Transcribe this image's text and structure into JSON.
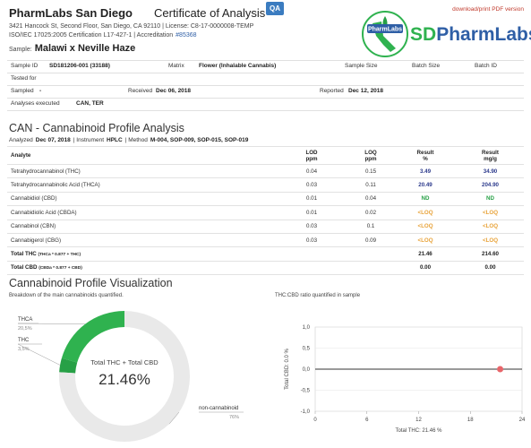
{
  "header": {
    "lab_name": "PharmLabs San Diego",
    "doc_title": "Certificate of Analysis",
    "badge": "QA",
    "download_link": "download/print PDF version",
    "address": "3421 Hancock St, Second Floor, San Diego, CA 92110 | License: C8-17-0000008-TEMP",
    "accreditation": "ISO/IEC 17025:2005 Certification L17-427-1 | Accreditation",
    "accreditation_no": "#85368",
    "sample_label": "Sample:",
    "sample_name": "Malawi x Neville Haze",
    "logo_badge": "PharmLabs",
    "logo_prefix": "SD",
    "logo_text": "PharmLabs"
  },
  "info": {
    "sample_id_label": "Sample ID",
    "sample_id": "SD181206-001 (33188)",
    "matrix_label": "Matrix",
    "matrix": "Flower (Inhalable Cannabis)",
    "sample_size_label": "Sample Size",
    "batch_size_label": "Batch Size",
    "batch_id_label": "Batch ID",
    "tested_for_label": "Tested for",
    "sampled_label": "Sampled",
    "sampled": "-",
    "received_label": "Received",
    "received": "Dec 06, 2018",
    "reported_label": "Reported",
    "reported": "Dec 12, 2018",
    "analyses_label": "Analyses executed",
    "analyses": "CAN, TER"
  },
  "can": {
    "title": "CAN - Cannabinoid Profile Analysis",
    "analyzed_label": "Analyzed",
    "analyzed": "Dec 07, 2018",
    "instrument_label": "| Instrument",
    "instrument": "HPLC",
    "method_label": "| Method",
    "method": "M-004, SOP-009, SOP-015, SOP-019"
  },
  "table": {
    "headers": [
      {
        "top": "Analyte"
      },
      {
        "top": "LOD",
        "bottom": "ppm"
      },
      {
        "top": "LOQ",
        "bottom": "ppm"
      },
      {
        "top": "Result",
        "bottom": "%"
      },
      {
        "top": "Result",
        "bottom": "mg/g"
      }
    ],
    "rows": [
      [
        "Tetrahydrocannabinol (THC)",
        "0.04",
        "0.15",
        "3.49",
        "34.90"
      ],
      [
        "Tetrahydrocannabinolic Acid (THCA)",
        "0.03",
        "0.11",
        "20.49",
        "204.90"
      ],
      [
        "Cannabidiol (CBD)",
        "0.01",
        "0.04",
        "ND",
        "ND"
      ],
      [
        "Cannabidiolic Acid (CBDA)",
        "0.01",
        "0.02",
        "<LOQ",
        "<LOQ"
      ],
      [
        "Cannabinol (CBN)",
        "0.03",
        "0.1",
        "<LOQ",
        "<LOQ"
      ],
      [
        "Cannabigerol (CBG)",
        "0.03",
        "0.09",
        "<LOQ",
        "<LOQ"
      ]
    ],
    "totals": [
      {
        "name": "Total THC",
        "formula": "(THCa * 0.877 + THC)",
        "percent": "21.46",
        "mg_g": "214.60"
      },
      {
        "name": "Total CBD",
        "formula": "(CBDa * 0.877 + CBD)",
        "percent": "0.00",
        "mg_g": "0.00"
      }
    ]
  },
  "viz": {
    "title": "Cannabinoid Profile Visualization",
    "donut_caption": "Breakdown of the main cannabinoids quantified.",
    "scatter_caption": "THC:CBD ratio quantified in sample"
  },
  "donut": {
    "type": "pie",
    "center_title": "Total THC + Total CBD",
    "center_value": "21.46%",
    "segments": [
      {
        "name": "THCA",
        "value": 20.5,
        "label": "20,5%",
        "color": "#2fb24f"
      },
      {
        "name": "THC",
        "value": 3.5,
        "label": "3,5%",
        "color": "#27a046"
      },
      {
        "name": "non-cannabinoid",
        "value": 76,
        "label": "76%",
        "color": "#e9e9e9"
      }
    ]
  },
  "scatter": {
    "type": "scatter",
    "x_label": "Total THC: 21.46 %",
    "y_label": "Total CBD: 0.0 %",
    "xlim": [
      0,
      24
    ],
    "xticks": [
      0,
      6,
      12,
      18,
      24
    ],
    "ylim": [
      -1,
      1
    ],
    "yticks": [
      {
        "value": -1,
        "label": "-1,0"
      },
      {
        "value": -0.5,
        "label": "-0,5"
      },
      {
        "value": 0,
        "label": "0,0"
      },
      {
        "value": 0.5,
        "label": "0,5"
      },
      {
        "value": 1,
        "label": "1,0"
      }
    ],
    "x": [
      21.46
    ],
    "y": [
      0
    ],
    "color": "#e8656a"
  }
}
